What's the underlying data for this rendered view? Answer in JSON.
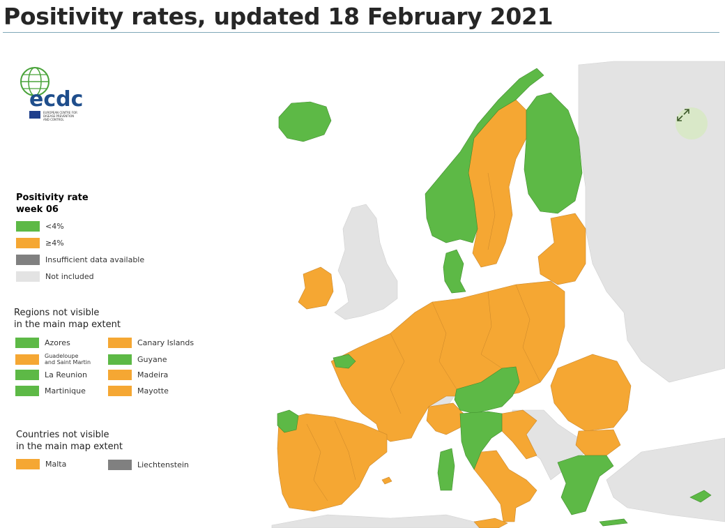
{
  "page_title": "Positivity rates, updated 18 February 2021",
  "logo": {
    "text": "ecdc",
    "subtitle_line1": "EUROPEAN CENTRE FOR",
    "subtitle_line2": "DISEASE PREVENTION",
    "subtitle_line3": "AND CONTROL"
  },
  "legend": {
    "title_line1": "Positivity rate",
    "title_line2": "week 06",
    "items": [
      {
        "label": "<4%",
        "color": "#5db946"
      },
      {
        "label": "≥4%",
        "color": "#f5a733"
      },
      {
        "label": "Insufficient data available",
        "color": "#808080"
      },
      {
        "label": "Not included",
        "color": "#e3e3e3"
      }
    ]
  },
  "regions_section": {
    "title_line1": "Regions not visible",
    "title_line2": "in the main map extent",
    "items": [
      {
        "label": "Azores",
        "color": "#5db946"
      },
      {
        "label": "Canary Islands",
        "color": "#f5a733"
      },
      {
        "label_line1": "Guadeloupe",
        "label_line2": "and Saint Martin",
        "color": "#f5a733"
      },
      {
        "label": "Guyane",
        "color": "#5db946"
      },
      {
        "label": "La Reunion",
        "color": "#5db946"
      },
      {
        "label": "Madeira",
        "color": "#f5a733"
      },
      {
        "label": "Martinique",
        "color": "#5db946"
      },
      {
        "label": "Mayotte",
        "color": "#f5a733"
      }
    ]
  },
  "countries_section": {
    "title_line1": "Countries not visible",
    "title_line2": "in the main map extent",
    "items": [
      {
        "label": "Malta",
        "color": "#f5a733"
      },
      {
        "label": "Liechtenstein",
        "color": "#808080"
      }
    ]
  },
  "map_colors": {
    "green": "#5db946",
    "orange": "#f5a733",
    "not_included": "#e3e3e3",
    "sea": "#ffffff"
  },
  "expand_icon": "expand-arrows-icon"
}
